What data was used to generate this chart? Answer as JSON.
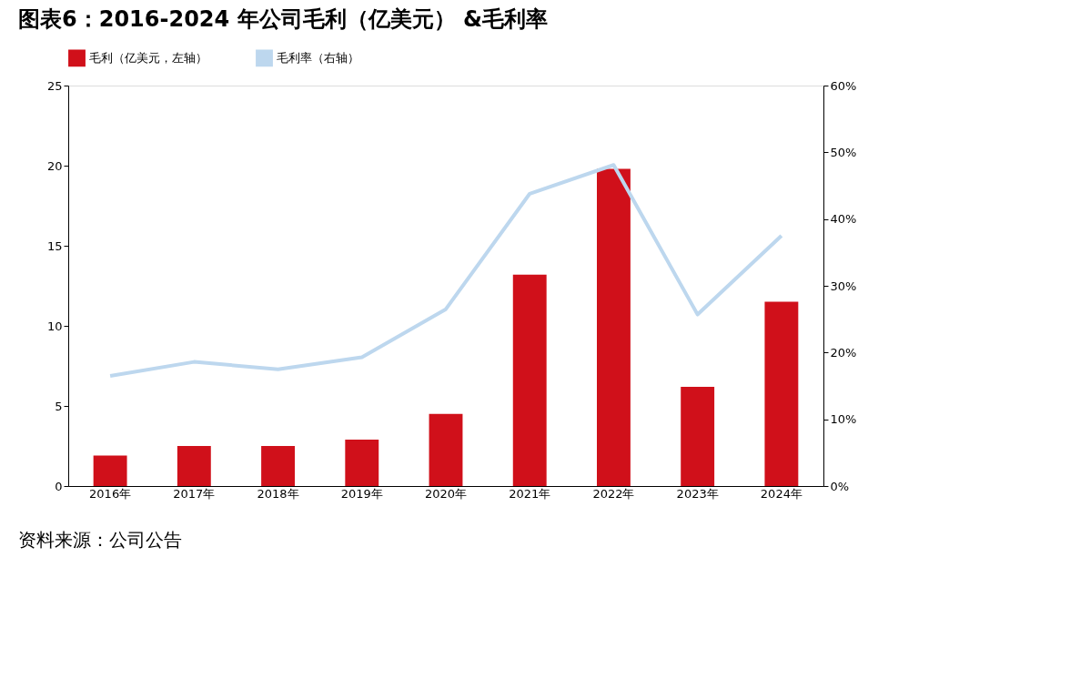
{
  "chart_data": {
    "type": "bar",
    "title": "图表6：2016-2024 年公司毛利（亿美元） &毛利率",
    "categories": [
      "2016年",
      "2017年",
      "2018年",
      "2019年",
      "2020年",
      "2021年",
      "2022年",
      "2023年",
      "2024年"
    ],
    "series": [
      {
        "name": "毛利（亿美元，左轴）",
        "color": "#d0101a",
        "values": [
          1.9,
          2.5,
          2.5,
          2.9,
          4.5,
          13.2,
          19.8,
          6.2,
          11.5
        ]
      },
      {
        "name": "毛利率（右轴）",
        "type": "line",
        "axis": "y2",
        "color": "#bdd7ee",
        "values": [
          16.5,
          18.6,
          17.5,
          19.3,
          26.5,
          43.8,
          48.1,
          25.7,
          37.5
        ]
      }
    ],
    "ylim": [
      0,
      25
    ],
    "yticks": [
      0,
      5,
      10,
      15,
      20,
      25
    ],
    "y2lim": [
      0,
      60
    ],
    "y2ticks": [
      {
        "value": 0,
        "label": "0%"
      },
      {
        "value": 10,
        "label": "10%"
      },
      {
        "value": 20,
        "label": "20%"
      },
      {
        "value": 30,
        "label": "30%"
      },
      {
        "value": 40,
        "label": "40%"
      },
      {
        "value": 50,
        "label": "50%"
      },
      {
        "value": 60,
        "label": "60%"
      }
    ],
    "grid": false,
    "legend": "top",
    "marker": "none",
    "line_style": "solid",
    "annotations": [
      "资料来源：公司公告"
    ]
  }
}
